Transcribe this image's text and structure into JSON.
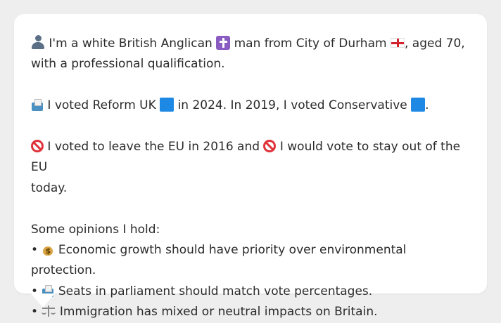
{
  "profile": {
    "intro_part1": "I'm a white British Anglican",
    "intro_part2": "man from City of Durham",
    "intro_part3": ", aged 70,",
    "intro_part4": "with a professional qualification."
  },
  "voting": {
    "text_part1": "I voted Reform UK",
    "text_part2": "in 2024. In 2019, I voted Conservative",
    "text_part3": ".",
    "reform_color": "#1e88e5",
    "conservative_color": "#1e88e5"
  },
  "eu": {
    "text_part1": "I voted to leave the EU in 2016 and",
    "text_part2": "I would vote to stay out of the EU",
    "text_part3": "today."
  },
  "opinions": {
    "heading": "Some opinions I hold:",
    "bullet": "•",
    "items": [
      {
        "icon": "money-bag-icon",
        "text": "Economic growth should have priority over environmental protection."
      },
      {
        "icon": "ballot-box-icon",
        "text": "Seats in parliament should match vote percentages."
      },
      {
        "icon": "scales-icon",
        "text": "Immigration has mixed or neutral impacts on Britain."
      }
    ]
  }
}
